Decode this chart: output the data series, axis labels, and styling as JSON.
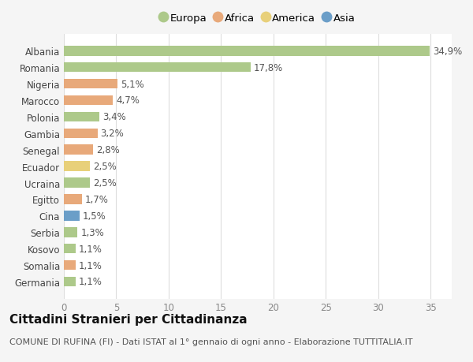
{
  "countries": [
    "Albania",
    "Romania",
    "Nigeria",
    "Marocco",
    "Polonia",
    "Gambia",
    "Senegal",
    "Ecuador",
    "Ucraina",
    "Egitto",
    "Cina",
    "Serbia",
    "Kosovo",
    "Somalia",
    "Germania"
  ],
  "values": [
    34.9,
    17.8,
    5.1,
    4.7,
    3.4,
    3.2,
    2.8,
    2.5,
    2.5,
    1.7,
    1.5,
    1.3,
    1.1,
    1.1,
    1.1
  ],
  "labels": [
    "34,9%",
    "17,8%",
    "5,1%",
    "4,7%",
    "3,4%",
    "3,2%",
    "2,8%",
    "2,5%",
    "2,5%",
    "1,7%",
    "1,5%",
    "1,3%",
    "1,1%",
    "1,1%",
    "1,1%"
  ],
  "continents": [
    "Europa",
    "Europa",
    "Africa",
    "Africa",
    "Europa",
    "Africa",
    "Africa",
    "America",
    "Europa",
    "Africa",
    "Asia",
    "Europa",
    "Europa",
    "Africa",
    "Europa"
  ],
  "continent_colors": {
    "Europa": "#adc98a",
    "Africa": "#e8a97a",
    "America": "#e8d07a",
    "Asia": "#6b9ec8"
  },
  "legend_order": [
    "Europa",
    "Africa",
    "America",
    "Asia"
  ],
  "title": "Cittadini Stranieri per Cittadinanza",
  "subtitle": "COMUNE DI RUFINA (FI) - Dati ISTAT al 1° gennaio di ogni anno - Elaborazione TUTTITALIA.IT",
  "xlim": [
    0,
    37
  ],
  "xticks": [
    0,
    5,
    10,
    15,
    20,
    25,
    30,
    35
  ],
  "bg_color": "#f5f5f5",
  "plot_bg_color": "#ffffff",
  "bar_height": 0.6,
  "label_fontsize": 8.5,
  "tick_fontsize": 8.5,
  "title_fontsize": 11,
  "subtitle_fontsize": 8
}
